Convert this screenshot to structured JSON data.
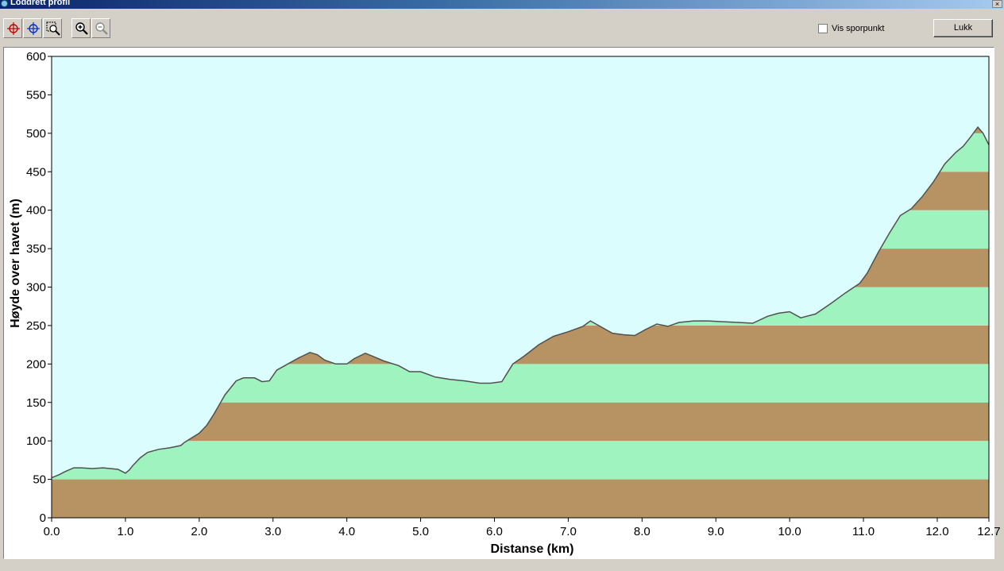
{
  "window": {
    "title": "Loddrett profil",
    "close_label": "×"
  },
  "toolbar": {
    "buttons": [
      {
        "name": "crosshair-red-tool",
        "icon": "crosshair-red-icon"
      },
      {
        "name": "crosshair-blue-tool",
        "icon": "crosshair-blue-icon"
      },
      {
        "name": "zoom-window-tool",
        "icon": "zoom-window-icon"
      },
      {
        "name": "zoom-in-tool",
        "icon": "zoom-in-icon"
      },
      {
        "name": "zoom-out-tool",
        "icon": "zoom-out-icon"
      }
    ],
    "checkbox_label": "Vis sporpunkt",
    "checkbox_checked": false,
    "close_button_label": "Lukk"
  },
  "colors": {
    "background": "#dcfdfd",
    "band_brown": "#b79364",
    "band_green": "#9ff3bf",
    "profile_line": "#505050"
  },
  "chart_data": {
    "type": "area",
    "title": "",
    "xlabel": "Distanse   (km)",
    "ylabel": "Høyde over havet (m)",
    "xlim": [
      0,
      12.7
    ],
    "ylim": [
      0,
      600
    ],
    "x_ticks": [
      "0.0",
      "1.0",
      "2.0",
      "3.0",
      "4.0",
      "5.0",
      "6.0",
      "7.0",
      "8.0",
      "9.0",
      "10.0",
      "11.0",
      "12.0",
      "12.7"
    ],
    "x_tick_values": [
      0,
      1,
      2,
      3,
      4,
      5,
      6,
      7,
      8,
      9,
      10,
      11,
      12,
      12.7
    ],
    "y_ticks": [
      "0",
      "50",
      "100",
      "150",
      "200",
      "250",
      "300",
      "350",
      "400",
      "450",
      "500",
      "550",
      "600"
    ],
    "y_tick_values": [
      0,
      50,
      100,
      150,
      200,
      250,
      300,
      350,
      400,
      450,
      500,
      550,
      600
    ],
    "band_interval": 50,
    "grid": false,
    "legend": "none",
    "x": [
      0,
      0.1,
      0.18,
      0.3,
      0.4,
      0.55,
      0.7,
      0.9,
      1.0,
      1.05,
      1.1,
      1.2,
      1.3,
      1.45,
      1.6,
      1.75,
      1.8,
      1.9,
      2.0,
      2.1,
      2.2,
      2.35,
      2.5,
      2.6,
      2.75,
      2.85,
      2.95,
      3.05,
      3.2,
      3.35,
      3.5,
      3.6,
      3.7,
      3.85,
      4.0,
      4.1,
      4.25,
      4.35,
      4.5,
      4.7,
      4.85,
      5.0,
      5.2,
      5.4,
      5.6,
      5.8,
      5.95,
      6.1,
      6.25,
      6.4,
      6.6,
      6.8,
      7.0,
      7.2,
      7.3,
      7.45,
      7.6,
      7.75,
      7.9,
      8.05,
      8.2,
      8.35,
      8.5,
      8.7,
      8.9,
      9.1,
      9.3,
      9.5,
      9.7,
      9.85,
      10.0,
      10.15,
      10.35,
      10.55,
      10.75,
      10.95,
      11.05,
      11.2,
      11.35,
      11.5,
      11.65,
      11.8,
      11.95,
      12.1,
      12.25,
      12.35,
      12.45,
      12.55,
      12.62,
      12.7
    ],
    "y": [
      52,
      56,
      60,
      65,
      65,
      64,
      65,
      63,
      58,
      62,
      68,
      78,
      85,
      89,
      91,
      94,
      98,
      104,
      110,
      120,
      135,
      160,
      178,
      182,
      182,
      177,
      178,
      192,
      200,
      208,
      215,
      212,
      205,
      200,
      200,
      207,
      214,
      210,
      204,
      198,
      190,
      190,
      183,
      180,
      178,
      175,
      175,
      177,
      200,
      210,
      225,
      236,
      242,
      249,
      256,
      248,
      240,
      238,
      237,
      245,
      252,
      249,
      254,
      256,
      256,
      255,
      254,
      253,
      262,
      266,
      268,
      260,
      265,
      278,
      292,
      305,
      318,
      345,
      370,
      393,
      402,
      418,
      437,
      460,
      475,
      483,
      495,
      508,
      500,
      485
    ]
  }
}
